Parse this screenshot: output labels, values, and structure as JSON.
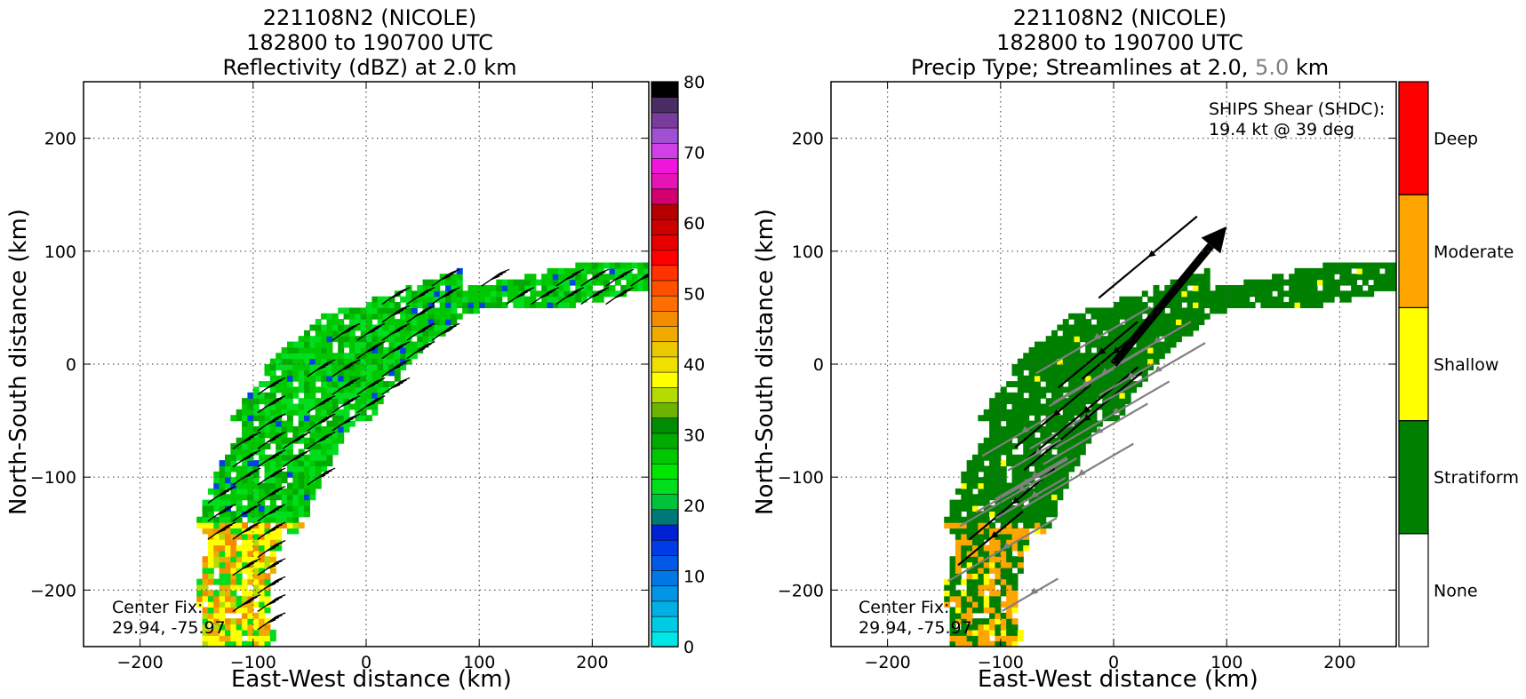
{
  "chart_data": [
    {
      "type": "heatmap",
      "title_lines": [
        "221108N2 (NICOLE)",
        "182800 to 190700 UTC",
        "Reflectivity (dBZ) at 2.0 km"
      ],
      "xlabel": "East-West distance (km)",
      "ylabel": "North-South distance (km)",
      "xlim": [
        -250,
        250
      ],
      "ylim": [
        -250,
        250
      ],
      "x_ticks": [
        -200,
        -100,
        0,
        100,
        200
      ],
      "y_ticks": [
        -200,
        -100,
        0,
        100,
        200
      ],
      "x_tick_labels": [
        "−200",
        "−100",
        "0",
        "100",
        "200"
      ],
      "y_tick_labels": [
        "−200",
        "−100",
        "0",
        "100",
        "200"
      ],
      "grid": true,
      "colorbar": {
        "range": [
          0,
          80
        ],
        "tick_values": [
          0,
          10,
          20,
          30,
          40,
          50,
          60,
          70,
          80
        ],
        "tick_labels": [
          "0",
          "10",
          "20",
          "30",
          "40",
          "50",
          "60",
          "70",
          "80"
        ],
        "colors": [
          "#00e5e5",
          "#00cbe5",
          "#00b0e5",
          "#0095e5",
          "#0078e5",
          "#005ae5",
          "#003ce5",
          "#0020d6",
          "#00787a",
          "#00c33a",
          "#00dc1e",
          "#00e500",
          "#00c800",
          "#00aa00",
          "#008c00",
          "#6cb400",
          "#b4dc00",
          "#ffff00",
          "#f0e000",
          "#ebc800",
          "#f0aa00",
          "#f58c00",
          "#ff6e00",
          "#ff5000",
          "#ff3200",
          "#ff0000",
          "#e60000",
          "#cd0000",
          "#b40000",
          "#d2006e",
          "#e614b4",
          "#f014dc",
          "#d040e6",
          "#a050d2",
          "#7a3c9b",
          "#4b2d64",
          "#000000"
        ]
      },
      "annotation": "Center Fix:\n29.94, -75.97",
      "echo_centerline": [
        [
          -115,
          -250
        ],
        [
          -120,
          -200
        ],
        [
          -108,
          -150
        ],
        [
          -88,
          -100
        ],
        [
          -60,
          -50
        ],
        [
          -25,
          0
        ],
        [
          20,
          40
        ],
        [
          80,
          60
        ],
        [
          140,
          62
        ],
        [
          200,
          72
        ],
        [
          245,
          82
        ]
      ],
      "wind_barbs_region": "along band from (-130,-230) to (235,75)"
    },
    {
      "type": "heatmap",
      "title_lines": [
        "221108N2 (NICOLE)",
        "182800 to 190700 UTC"
      ],
      "title_line3_parts": [
        "Precip Type; Streamlines at 2.0, ",
        "5.0",
        " km"
      ],
      "xlabel": "East-West distance (km)",
      "ylabel": "North-South distance (km)",
      "xlim": [
        -250,
        250
      ],
      "ylim": [
        -250,
        250
      ],
      "x_ticks": [
        -200,
        -100,
        0,
        100,
        200
      ],
      "y_ticks": [
        -200,
        -100,
        0,
        100,
        200
      ],
      "x_tick_labels": [
        "−200",
        "−100",
        "0",
        "100",
        "200"
      ],
      "y_tick_labels": [
        "−200",
        "−100",
        "0",
        "100",
        "200"
      ],
      "grid": true,
      "categories": [
        "None",
        "Stratiform",
        "Shallow",
        "Moderate",
        "Deep"
      ],
      "category_colors": [
        "#ffffff",
        "#008000",
        "#ffff00",
        "#ffa500",
        "#ff0000"
      ],
      "shear_annotation": "SHIPS Shear (SHDC):\n19.4 kt @ 39 deg",
      "shear_vector": {
        "from": [
          0,
          0
        ],
        "to": [
          100,
          122
        ]
      },
      "annotation": "Center Fix:\n29.94, -75.97",
      "streamline_colors": {
        "level_2km": "#000000",
        "level_5km": "#808080"
      }
    }
  ]
}
